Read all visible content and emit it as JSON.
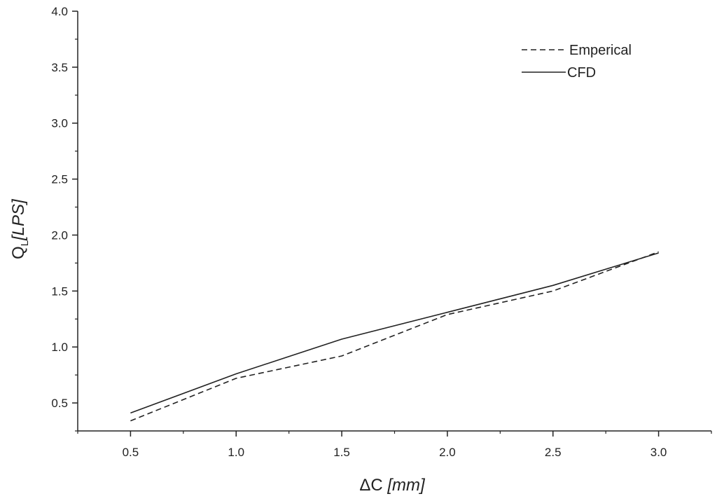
{
  "chart_data": {
    "type": "line",
    "xlabel_main": "ΔC",
    "xlabel_unit": "[mm]",
    "ylabel_main": "Q",
    "ylabel_sub": "L",
    "ylabel_unit": "[LPS]",
    "xlim": [
      0.25,
      3.25
    ],
    "ylim": [
      0.25,
      4.0
    ],
    "x_ticks": [
      0.5,
      1.0,
      1.5,
      2.0,
      2.5,
      3.0
    ],
    "y_ticks": [
      0.5,
      1.0,
      1.5,
      2.0,
      2.5,
      3.0,
      3.5,
      4.0
    ],
    "x": [
      0.5,
      1.0,
      1.5,
      2.0,
      2.5,
      3.0
    ],
    "series": [
      {
        "name": "Emperical",
        "style": "dashed",
        "values": [
          0.34,
          0.72,
          0.92,
          1.29,
          1.5,
          1.85
        ]
      },
      {
        "name": "CFD",
        "style": "solid",
        "values": [
          0.41,
          0.76,
          1.07,
          1.31,
          1.55,
          1.84
        ]
      }
    ],
    "legend_position": "top-right",
    "grid": false,
    "line_color": "#222222"
  }
}
